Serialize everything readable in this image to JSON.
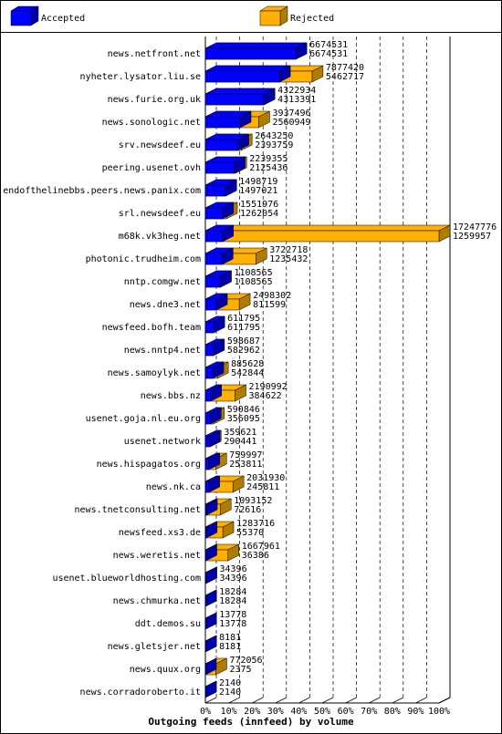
{
  "chart_data": {
    "type": "bar3d",
    "orientation": "horizontal",
    "title": "Outgoing feeds (innfeed) by volume",
    "categories": [
      "news.netfront.net",
      "nyheter.lysator.liu.se",
      "news.furie.org.uk",
      "news.sonologic.net",
      "srv.newsdeef.eu",
      "peering.usenet.ovh",
      "endofthelinebbs.peers.news.panix.com",
      "srl.newsdeef.eu",
      "m68k.vk3heg.net",
      "photonic.trudheim.com",
      "nntp.comgw.net",
      "news.dne3.net",
      "newsfeed.bofh.team",
      "news.nntp4.net",
      "news.samoylyk.net",
      "news.bbs.nz",
      "usenet.goja.nl.eu.org",
      "usenet.network",
      "news.hispagatos.org",
      "news.nk.ca",
      "news.tnetconsulting.net",
      "newsfeed.xs3.de",
      "news.weretis.net",
      "usenet.blueworldhosting.com",
      "news.chmurka.net",
      "ddt.demos.su",
      "news.gletsjer.net",
      "news.quux.org",
      "news.corradoroberto.it"
    ],
    "series": [
      {
        "name": "Accepted",
        "color": "#0000ff",
        "side": "#0000a8",
        "values": [
          6674531,
          5462717,
          4313391,
          2560949,
          2393759,
          2125436,
          1497021,
          1262054,
          1259957,
          1235432,
          1108565,
          811599,
          611795,
          582962,
          542844,
          384622,
          356095,
          290441,
          253811,
          245811,
          72616,
          55370,
          36386,
          34396,
          18284,
          13778,
          8181,
          2375,
          2140
        ]
      },
      {
        "name": "Rejected",
        "color": "#ffb000",
        "side": "#b07c00",
        "values": [
          6674531,
          7877420,
          4322934,
          3937496,
          2643250,
          2239355,
          1498719,
          1551976,
          17247776,
          3722718,
          1108565,
          2498302,
          611795,
          598687,
          885628,
          2190992,
          590846,
          359621,
          759997,
          2031930,
          1093152,
          1283716,
          1667961,
          34396,
          18284,
          13778,
          8181,
          772056,
          2140
        ]
      }
    ],
    "xlim": [
      0,
      17247776
    ],
    "xticks": [
      {
        "value": 0,
        "label": "0%"
      },
      {
        "value": 1724777.6,
        "label": "10%"
      },
      {
        "value": 3449555.2,
        "label": "20%"
      },
      {
        "value": 5174332.8,
        "label": "30%"
      },
      {
        "value": 6899110.4,
        "label": "40%"
      },
      {
        "value": 8623888,
        "label": "50%"
      },
      {
        "value": 10348665.6,
        "label": "60%"
      },
      {
        "value": 12073443.2,
        "label": "70%"
      },
      {
        "value": 13798220.8,
        "label": "80%"
      },
      {
        "value": 15522998.4,
        "label": "90%"
      },
      {
        "value": 17247776,
        "label": "100%"
      }
    ],
    "grid": true
  }
}
